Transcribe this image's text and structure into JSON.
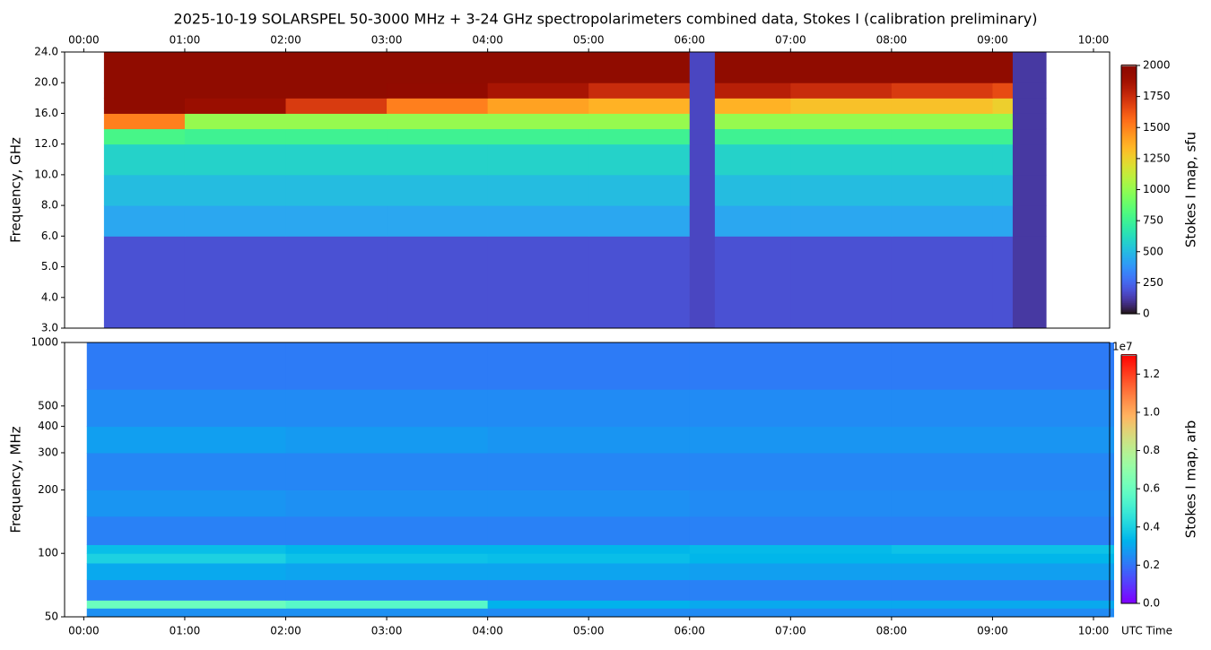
{
  "title": "2025-10-19  SOLARSPEL  50-3000 MHz  +  3-24 GHz  spectropolarimeters combined data,  Stokes I  (calibration preliminary)",
  "chart_data": [
    {
      "type": "heatmap",
      "y_label": "Frequency, GHz",
      "colorbar_label": "Stokes I map, sfu",
      "colormap": "turbo",
      "yscale": "piecewise",
      "x_edges": [
        0.2,
        1,
        2,
        3,
        4,
        5,
        6,
        6.25,
        7,
        8,
        9,
        9.2,
        9.53
      ],
      "y_edges": [
        3,
        6,
        8,
        10,
        12,
        14,
        16,
        18,
        20,
        24
      ],
      "values": [
        [
          180,
          180,
          180,
          180,
          180,
          180,
          150,
          180,
          180,
          180,
          180,
          110
        ],
        [
          430,
          430,
          430,
          430,
          430,
          430,
          150,
          430,
          430,
          430,
          430,
          110
        ],
        [
          500,
          500,
          500,
          500,
          500,
          500,
          150,
          500,
          500,
          500,
          500,
          110
        ],
        [
          580,
          580,
          580,
          580,
          580,
          580,
          150,
          580,
          580,
          580,
          580,
          110
        ],
        [
          780,
          750,
          750,
          750,
          750,
          750,
          150,
          750,
          750,
          750,
          750,
          110
        ],
        [
          1500,
          1000,
          1000,
          1000,
          1000,
          1000,
          150,
          1000,
          1000,
          1000,
          1000,
          110
        ],
        [
          2000,
          1900,
          1700,
          1500,
          1400,
          1350,
          150,
          1350,
          1300,
          1300,
          1250,
          110
        ],
        [
          2000,
          2000,
          2000,
          1950,
          1850,
          1750,
          150,
          1800,
          1750,
          1700,
          1650,
          110
        ],
        [
          2000,
          2000,
          2000,
          2000,
          2000,
          2000,
          150,
          2000,
          2000,
          2000,
          2000,
          110
        ]
      ],
      "xlim": [
        -0.19,
        10.16
      ],
      "xticks": [
        {
          "value": 0,
          "label": "00:00"
        },
        {
          "value": 1,
          "label": "01:00"
        },
        {
          "value": 2,
          "label": "02:00"
        },
        {
          "value": 3,
          "label": "03:00"
        },
        {
          "value": 4,
          "label": "04:00"
        },
        {
          "value": 5,
          "label": "05:00"
        },
        {
          "value": 6,
          "label": "06:00"
        },
        {
          "value": 7,
          "label": "07:00"
        },
        {
          "value": 8,
          "label": "08:00"
        },
        {
          "value": 9,
          "label": "09:00"
        },
        {
          "value": 10,
          "label": "10:00"
        }
      ],
      "ylim": [
        3,
        24
      ],
      "yticks": [
        {
          "value": 3,
          "label": "3.0"
        },
        {
          "value": 4,
          "label": "4.0"
        },
        {
          "value": 5,
          "label": "5.0"
        },
        {
          "value": 6,
          "label": "6.0"
        },
        {
          "value": 8,
          "label": "8.0"
        },
        {
          "value": 10,
          "label": "10.0"
        },
        {
          "value": 12,
          "label": "12.0"
        },
        {
          "value": 16,
          "label": "16.0"
        },
        {
          "value": 20,
          "label": "20.0"
        },
        {
          "value": 24,
          "label": "24.0"
        }
      ],
      "clim": [
        0,
        2000
      ],
      "cticks": [
        0,
        250,
        500,
        750,
        1000,
        1250,
        1500,
        1750,
        2000
      ]
    },
    {
      "type": "heatmap",
      "y_label": "Frequency, MHz",
      "x_label": "UTC Time",
      "colorbar_label": "Stokes I map, arb",
      "colorbar_offset": "1e7",
      "colormap": "rainbow",
      "yscale": "log",
      "x_edges": [
        0.03,
        2,
        4,
        6,
        8,
        10.2
      ],
      "y_edges": [
        50,
        55,
        60,
        75,
        90,
        100,
        110,
        150,
        200,
        300,
        400,
        600,
        1000
      ],
      "values": [
        [
          2500000,
          2500000,
          2400000,
          2400000,
          2400000
        ],
        [
          6000000,
          5500000,
          3200000,
          3000000,
          3000000
        ],
        [
          2200000,
          2200000,
          2200000,
          2200000,
          2200000
        ],
        [
          3000000,
          2900000,
          2900000,
          2800000,
          2800000
        ],
        [
          4000000,
          3600000,
          3500000,
          3300000,
          3300000
        ],
        [
          3500000,
          3300000,
          3300000,
          3400000,
          3600000
        ],
        [
          2200000,
          2200000,
          2200000,
          2200000,
          2200000
        ],
        [
          2600000,
          2500000,
          2500000,
          2400000,
          2400000
        ],
        [
          2300000,
          2300000,
          2300000,
          2300000,
          2300000
        ],
        [
          2800000,
          2700000,
          2600000,
          2600000,
          2600000
        ],
        [
          2400000,
          2400000,
          2400000,
          2400000,
          2400000
        ],
        [
          2100000,
          2100000,
          2100000,
          2100000,
          2100000
        ]
      ],
      "xlim": [
        -0.19,
        10.16
      ],
      "xticks": [
        {
          "value": 0,
          "label": "00:00"
        },
        {
          "value": 1,
          "label": "01:00"
        },
        {
          "value": 2,
          "label": "02:00"
        },
        {
          "value": 3,
          "label": "03:00"
        },
        {
          "value": 4,
          "label": "04:00"
        },
        {
          "value": 5,
          "label": "05:00"
        },
        {
          "value": 6,
          "label": "06:00"
        },
        {
          "value": 7,
          "label": "07:00"
        },
        {
          "value": 8,
          "label": "08:00"
        },
        {
          "value": 9,
          "label": "09:00"
        },
        {
          "value": 10,
          "label": "10:00"
        }
      ],
      "ylim": [
        50,
        1000
      ],
      "yticks": [
        50,
        100,
        200,
        300,
        400,
        500,
        1000
      ],
      "clim": [
        0,
        13000000
      ],
      "cticks": [
        {
          "value": 0,
          "label": "0.0"
        },
        {
          "value": 2000000,
          "label": "0.2"
        },
        {
          "value": 4000000,
          "label": "0.4"
        },
        {
          "value": 6000000,
          "label": "0.6"
        },
        {
          "value": 8000000,
          "label": "0.8"
        },
        {
          "value": 10000000,
          "label": "1.0"
        },
        {
          "value": 12000000,
          "label": "1.2"
        }
      ]
    }
  ]
}
